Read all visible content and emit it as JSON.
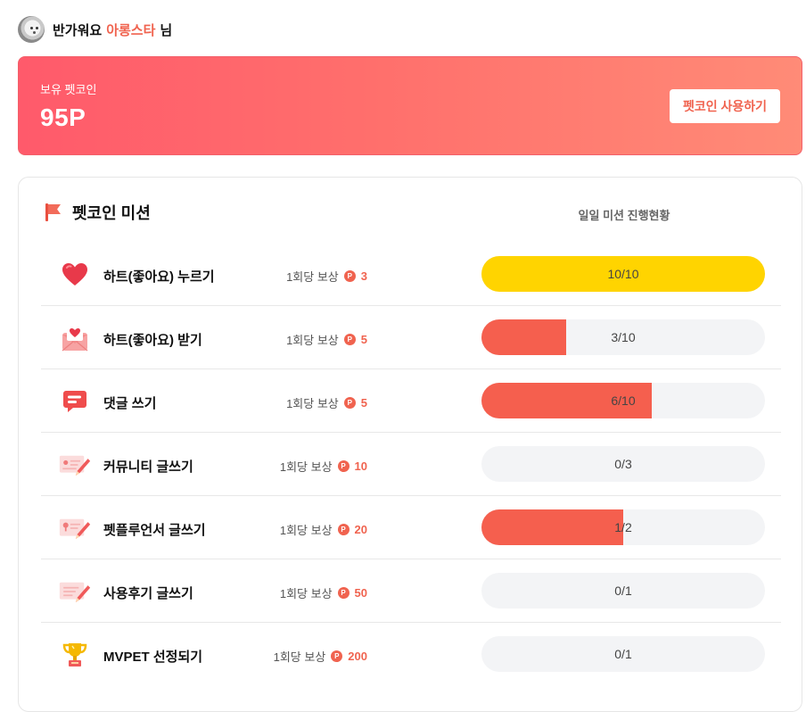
{
  "header": {
    "greeting_prefix": "반가워요",
    "nickname": "아롱스타",
    "greeting_suffix": "님"
  },
  "coin": {
    "label": "보유 펫코인",
    "value": "95P",
    "use_button": "펫코인 사용하기"
  },
  "missions": {
    "title": "펫코인 미션",
    "progress_header": "일일 미션 진행현황",
    "reward_prefix": "1회당 보상",
    "coin_glyph": "P",
    "items": [
      {
        "icon": "heart-icon",
        "name": "하트(좋아요) 누르기",
        "reward": "3",
        "progress_text": "10/10",
        "done": 10,
        "total": 10,
        "color": "#ffd400"
      },
      {
        "icon": "heart-mail-icon",
        "name": "하트(좋아요) 받기",
        "reward": "5",
        "progress_text": "3/10",
        "done": 3,
        "total": 10,
        "color": "#f55f4e"
      },
      {
        "icon": "comment-icon",
        "name": "댓글 쓰기",
        "reward": "5",
        "progress_text": "6/10",
        "done": 6,
        "total": 10,
        "color": "#f55f4e"
      },
      {
        "icon": "community-write-icon",
        "name": "커뮤니티 글쓰기",
        "reward": "10",
        "progress_text": "0/3",
        "done": 0,
        "total": 3,
        "color": "#f55f4e"
      },
      {
        "icon": "petfluencer-write-icon",
        "name": "펫플루언서 글쓰기",
        "reward": "20",
        "progress_text": "1/2",
        "done": 1,
        "total": 2,
        "color": "#f55f4e"
      },
      {
        "icon": "review-write-icon",
        "name": "사용후기 글쓰기",
        "reward": "50",
        "progress_text": "0/1",
        "done": 0,
        "total": 1,
        "color": "#f55f4e"
      },
      {
        "icon": "trophy-icon",
        "name": "MVPET 선정되기",
        "reward": "200",
        "progress_text": "0/1",
        "done": 0,
        "total": 1,
        "color": "#f55f4e"
      }
    ]
  },
  "colors": {
    "accent": "#f0634f",
    "complete": "#ffd400",
    "track": "#f3f4f6"
  }
}
